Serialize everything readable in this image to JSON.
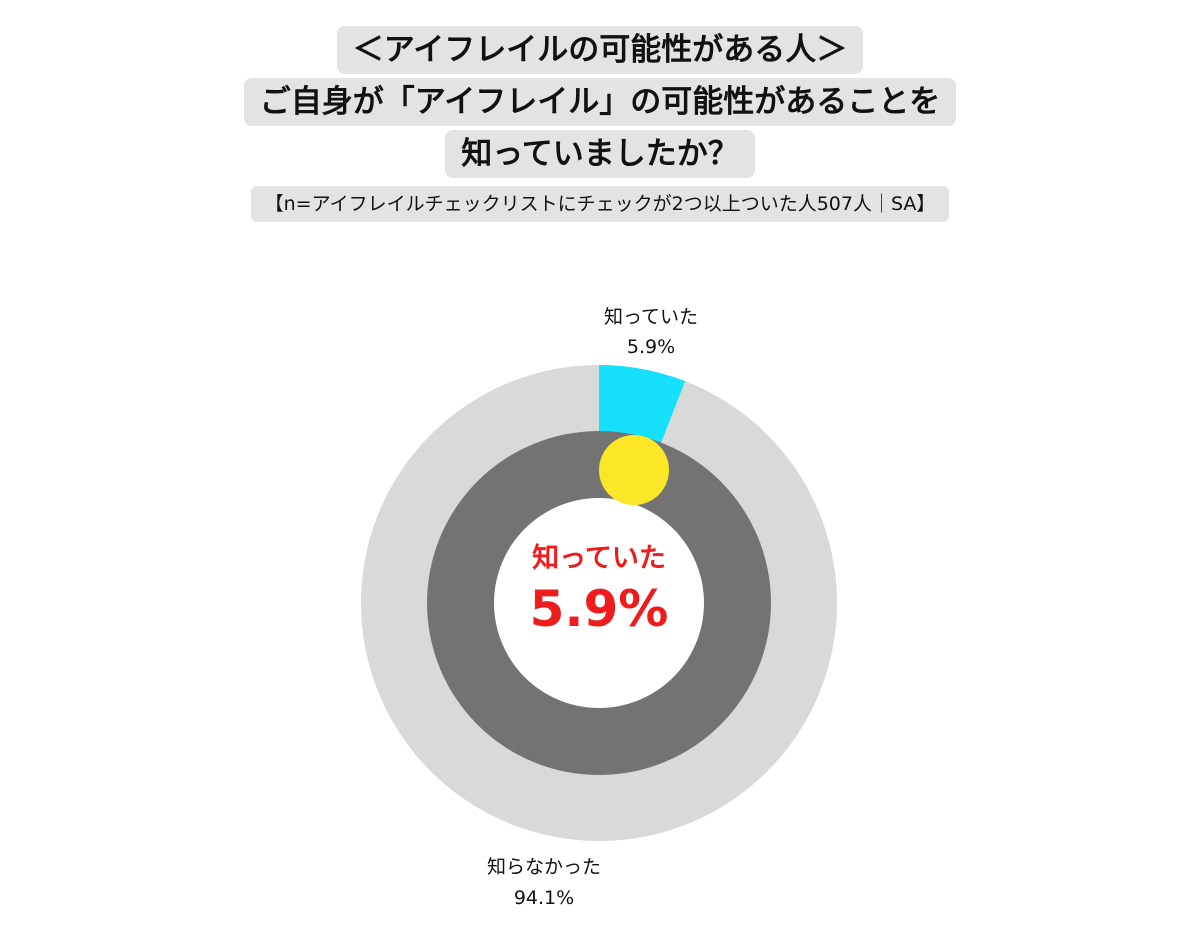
{
  "title": {
    "line1": "＜アイフレイルの可能性がある人＞",
    "line2": "ご自身が「アイフレイル」の可能性があることを",
    "line3": "知っていましたか？",
    "subtitle": "【n=アイフレイルチェックリストにチェックが2つ以上ついた人507人｜SA】"
  },
  "chart_data": {
    "type": "pie",
    "subtype": "donut",
    "n": 507,
    "categories": [
      "知っていた",
      "知らなかった"
    ],
    "values": [
      5.9,
      94.1
    ],
    "value_labels": [
      "5.9%",
      "94.1%"
    ],
    "colors": [
      "#16e0fc",
      "#d9d9d9"
    ],
    "inner_ring_color": "#737373",
    "marker_color": "#fbe727",
    "center_label": {
      "category": "知っていた",
      "value": "5.9%",
      "color": "#ee1c1c"
    }
  }
}
